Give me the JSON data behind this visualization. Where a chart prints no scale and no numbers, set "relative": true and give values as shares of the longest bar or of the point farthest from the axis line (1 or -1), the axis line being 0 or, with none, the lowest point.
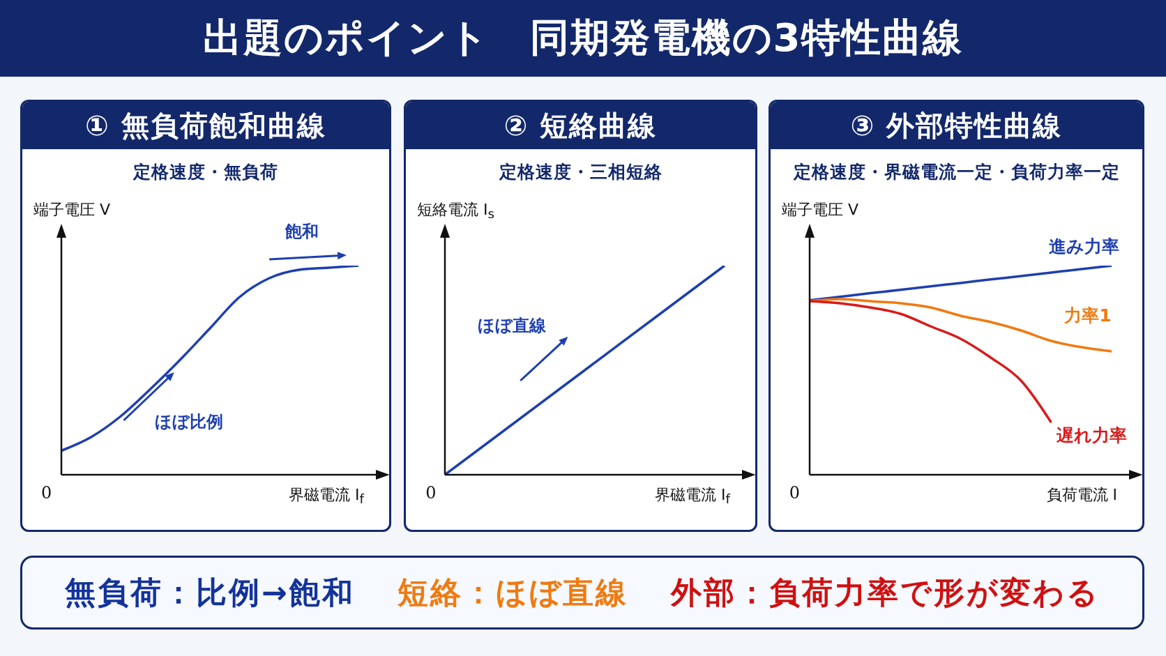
{
  "chart_data": [
    {
      "type": "other",
      "title": "出題のポイント　同期発電機の3特性曲線"
    },
    {
      "type": "line",
      "title": "① 無負荷飽和曲線",
      "subtitle": "定格速度・無負荷",
      "xlabel": "界磁電流 I$_{f}$",
      "ylabel": "端子電圧 V",
      "relative": true,
      "categories": [
        null,
        null,
        null,
        null,
        null,
        null,
        null,
        null,
        null,
        null,
        null
      ],
      "series": [
        {
          "color": "#1e3fb0",
          "values": [
            0.115,
            0.18,
            0.28,
            0.41,
            0.55,
            0.7,
            0.85,
            0.94,
            0.98,
            0.99,
            1
          ]
        }
      ],
      "annotations": [
        "飽和",
        "ほぼ比例",
        "0"
      ]
    },
    {
      "type": "line",
      "title": "② 短絡曲線",
      "subtitle": "定格速度・三相短絡",
      "xlabel": "界磁電流 I$_{f}$",
      "ylabel": "短絡電流 I$_{s}$",
      "relative": true,
      "categories": [
        null,
        null,
        null,
        null,
        null
      ],
      "series": [
        {
          "color": "#1e3fb0",
          "values": [
            0,
            0.25,
            0.5,
            0.75,
            1
          ]
        }
      ],
      "annotations": [
        "ほぼ直線",
        "0"
      ]
    },
    {
      "type": "line",
      "title": "③ 外部特性曲線",
      "subtitle": "定格速度・界磁電流一定・負荷力率一定",
      "xlabel": "負荷電流 I",
      "ylabel": "端子電圧 V",
      "relative": true,
      "categories": [
        null,
        null,
        null,
        null,
        null,
        null,
        null,
        null,
        null,
        null,
        null
      ],
      "series": [
        {
          "name": "進み力率",
          "color": "#1e3fb0",
          "values": [
            0.834,
            0.851,
            0.868,
            0.884,
            0.901,
            0.917,
            0.934,
            0.95,
            0.967,
            0.983,
            1
          ]
        },
        {
          "name": "力率1",
          "color": "#f07a10",
          "values": [
            0.83,
            0.84,
            0.83,
            0.82,
            0.8,
            0.76,
            0.73,
            0.69,
            0.64,
            0.61,
            0.59
          ]
        },
        {
          "name": "遅れ力率",
          "color": "#d91a1a",
          "values": [
            0.83,
            0.82,
            0.8,
            0.77,
            0.71,
            0.65,
            0.56,
            0.45,
            0.25,
            null,
            null
          ]
        }
      ],
      "annotations": [
        "0"
      ]
    },
    {
      "type": "other",
      "annotations": [
        "無負荷：比例→飽和",
        "短絡：ほぼ直線",
        "外部：負荷力率で形が変わる"
      ]
    }
  ]
}
